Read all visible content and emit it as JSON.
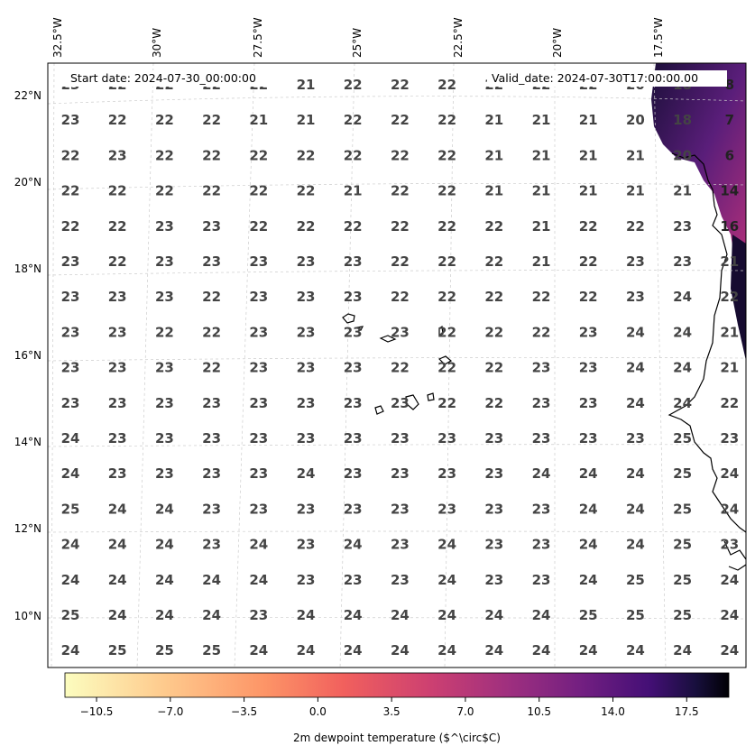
{
  "header": {
    "start_date": "Start date: 2024-07-30_00:00:00",
    "valid_date": "Valid_date: 2024-07-30T17:00:00.00"
  },
  "map": {
    "lon_labels": [
      "32.5°W",
      "30°W",
      "27.5°W",
      "25°W",
      "22.5°W",
      "20°W",
      "17.5°W"
    ],
    "lat_labels": [
      "22°N",
      "20°N",
      "18°N",
      "16°N",
      "14°N",
      "12°N",
      "10°N"
    ],
    "colors": {
      "land_dark": "#1c0f3a",
      "land_mid": "#5a1e7a",
      "land_bright": "#b4307a",
      "ocean": "#ffffff"
    }
  },
  "chart_data": {
    "type": "heatmap",
    "variable": "2m dewpoint temperature",
    "grid_values": [
      [
        "23",
        "22",
        "22",
        "22",
        "22",
        "21",
        "22",
        "22",
        "22",
        "22",
        "22",
        "22",
        "20",
        "18",
        "8"
      ],
      [
        "23",
        "22",
        "22",
        "22",
        "21",
        "21",
        "22",
        "22",
        "22",
        "21",
        "21",
        "21",
        "20",
        "18",
        "7"
      ],
      [
        "22",
        "23",
        "22",
        "22",
        "22",
        "22",
        "22",
        "22",
        "22",
        "21",
        "21",
        "21",
        "21",
        "20",
        "6"
      ],
      [
        "22",
        "22",
        "22",
        "22",
        "22",
        "22",
        "21",
        "22",
        "22",
        "21",
        "21",
        "21",
        "21",
        "21",
        "14"
      ],
      [
        "22",
        "22",
        "23",
        "23",
        "22",
        "22",
        "22",
        "22",
        "22",
        "22",
        "21",
        "22",
        "22",
        "23",
        "16"
      ],
      [
        "23",
        "22",
        "23",
        "23",
        "23",
        "23",
        "23",
        "22",
        "22",
        "22",
        "21",
        "22",
        "23",
        "23",
        "21"
      ],
      [
        "23",
        "23",
        "23",
        "22",
        "23",
        "23",
        "23",
        "22",
        "22",
        "22",
        "22",
        "22",
        "23",
        "24",
        "22"
      ],
      [
        "23",
        "23",
        "22",
        "22",
        "23",
        "23",
        "23",
        "23",
        "22",
        "22",
        "22",
        "23",
        "24",
        "24",
        "21"
      ],
      [
        "23",
        "23",
        "23",
        "22",
        "23",
        "23",
        "23",
        "22",
        "22",
        "22",
        "23",
        "23",
        "24",
        "24",
        "21"
      ],
      [
        "23",
        "23",
        "23",
        "23",
        "23",
        "23",
        "23",
        "23",
        "22",
        "22",
        "23",
        "23",
        "24",
        "24",
        "22"
      ],
      [
        "24",
        "23",
        "23",
        "23",
        "23",
        "23",
        "23",
        "23",
        "23",
        "23",
        "23",
        "23",
        "23",
        "25",
        "23"
      ],
      [
        "24",
        "23",
        "23",
        "23",
        "23",
        "24",
        "23",
        "23",
        "23",
        "23",
        "24",
        "24",
        "24",
        "25",
        "24"
      ],
      [
        "25",
        "24",
        "24",
        "23",
        "23",
        "23",
        "23",
        "23",
        "23",
        "23",
        "23",
        "24",
        "24",
        "25",
        "24"
      ],
      [
        "24",
        "24",
        "24",
        "23",
        "24",
        "23",
        "24",
        "23",
        "24",
        "23",
        "23",
        "24",
        "24",
        "25",
        "23"
      ],
      [
        "24",
        "24",
        "24",
        "24",
        "24",
        "23",
        "23",
        "23",
        "24",
        "23",
        "23",
        "24",
        "25",
        "25",
        "24"
      ],
      [
        "25",
        "24",
        "24",
        "24",
        "23",
        "24",
        "24",
        "24",
        "24",
        "24",
        "24",
        "25",
        "25",
        "25",
        "24"
      ],
      [
        "24",
        "25",
        "25",
        "25",
        "24",
        "24",
        "24",
        "24",
        "24",
        "24",
        "24",
        "24",
        "24",
        "24",
        "24"
      ]
    ],
    "colorbar": {
      "label": "2m dewpoint temperature ($^\\circ$C)",
      "ticks": [
        "−10.5",
        "−7.0",
        "−3.5",
        "0.0",
        "3.5",
        "7.0",
        "10.5",
        "14.0",
        "17.5"
      ],
      "range": [
        -12,
        19.5
      ],
      "colormap": "magma_r"
    }
  }
}
